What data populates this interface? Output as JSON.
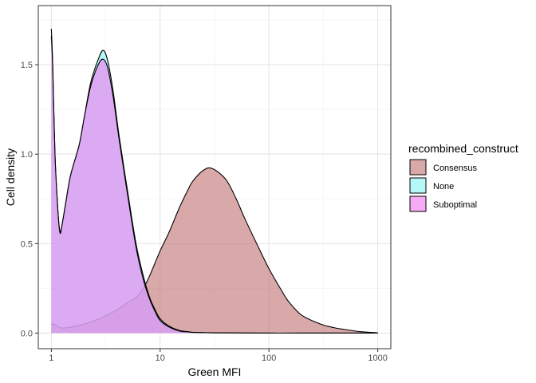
{
  "chart_data": {
    "type": "area",
    "subtype": "density",
    "xlabel": "Green MFI",
    "ylabel": "Cell density",
    "x_scale": "log10",
    "xlim": [
      1,
      1000
    ],
    "ylim": [
      0,
      1.75
    ],
    "x_ticks": [
      1,
      10,
      100,
      1000
    ],
    "x_tick_labels": [
      "1",
      "10",
      "100",
      "1000"
    ],
    "y_ticks": [
      0,
      0.5,
      1.0,
      1.5
    ],
    "y_tick_labels": [
      "0.0",
      "0.5",
      "1.0",
      "1.5"
    ],
    "grid": true,
    "legend": {
      "title": "recombined_construct",
      "position": "right"
    },
    "series": [
      {
        "name": "Consensus",
        "fill": "#C57A7A",
        "opacity": 0.65,
        "x": [
          1,
          1.05,
          1.1,
          1.2,
          1.4,
          1.7,
          2,
          2.5,
          3,
          4,
          5,
          6,
          7,
          8,
          10,
          12,
          15,
          18,
          20,
          25,
          30,
          40,
          50,
          60,
          80,
          100,
          130,
          150,
          200,
          300,
          400,
          500,
          700,
          1000
        ],
        "y": [
          0.05,
          0.05,
          0.045,
          0.03,
          0.03,
          0.04,
          0.05,
          0.07,
          0.09,
          0.13,
          0.17,
          0.2,
          0.25,
          0.32,
          0.46,
          0.56,
          0.7,
          0.8,
          0.85,
          0.91,
          0.92,
          0.86,
          0.75,
          0.64,
          0.48,
          0.36,
          0.24,
          0.18,
          0.1,
          0.05,
          0.03,
          0.02,
          0.008,
          0.002
        ]
      },
      {
        "name": "None",
        "fill": "#8FF5F5",
        "opacity": 0.65,
        "x": [
          1,
          1.03,
          1.08,
          1.15,
          1.2,
          1.25,
          1.35,
          1.5,
          1.8,
          2,
          2.3,
          2.7,
          3,
          3.3,
          3.7,
          4.2,
          5,
          6,
          7,
          8,
          9,
          10,
          12,
          15,
          18,
          20,
          30,
          50,
          100,
          200,
          1000
        ],
        "y": [
          1.7,
          1.5,
          1.0,
          0.68,
          0.57,
          0.6,
          0.72,
          0.88,
          1.05,
          1.2,
          1.4,
          1.53,
          1.58,
          1.52,
          1.35,
          1.1,
          0.8,
          0.5,
          0.32,
          0.2,
          0.13,
          0.08,
          0.04,
          0.015,
          0.008,
          0.005,
          0.002,
          0.001,
          0,
          0,
          0
        ]
      },
      {
        "name": "Suboptimal",
        "fill": "#F07FF0",
        "opacity": 0.65,
        "x": [
          1,
          1.03,
          1.08,
          1.15,
          1.2,
          1.25,
          1.35,
          1.5,
          1.8,
          2,
          2.3,
          2.7,
          3,
          3.3,
          3.7,
          4.2,
          5,
          6,
          7,
          8,
          9,
          10,
          12,
          15,
          18,
          20,
          30,
          50,
          100,
          200,
          1000
        ],
        "y": [
          1.66,
          1.48,
          1.0,
          0.68,
          0.56,
          0.6,
          0.72,
          0.88,
          1.05,
          1.2,
          1.38,
          1.5,
          1.53,
          1.48,
          1.32,
          1.08,
          0.78,
          0.48,
          0.3,
          0.19,
          0.12,
          0.07,
          0.035,
          0.012,
          0.007,
          0.004,
          0.002,
          0.001,
          0,
          0,
          0
        ]
      }
    ]
  }
}
